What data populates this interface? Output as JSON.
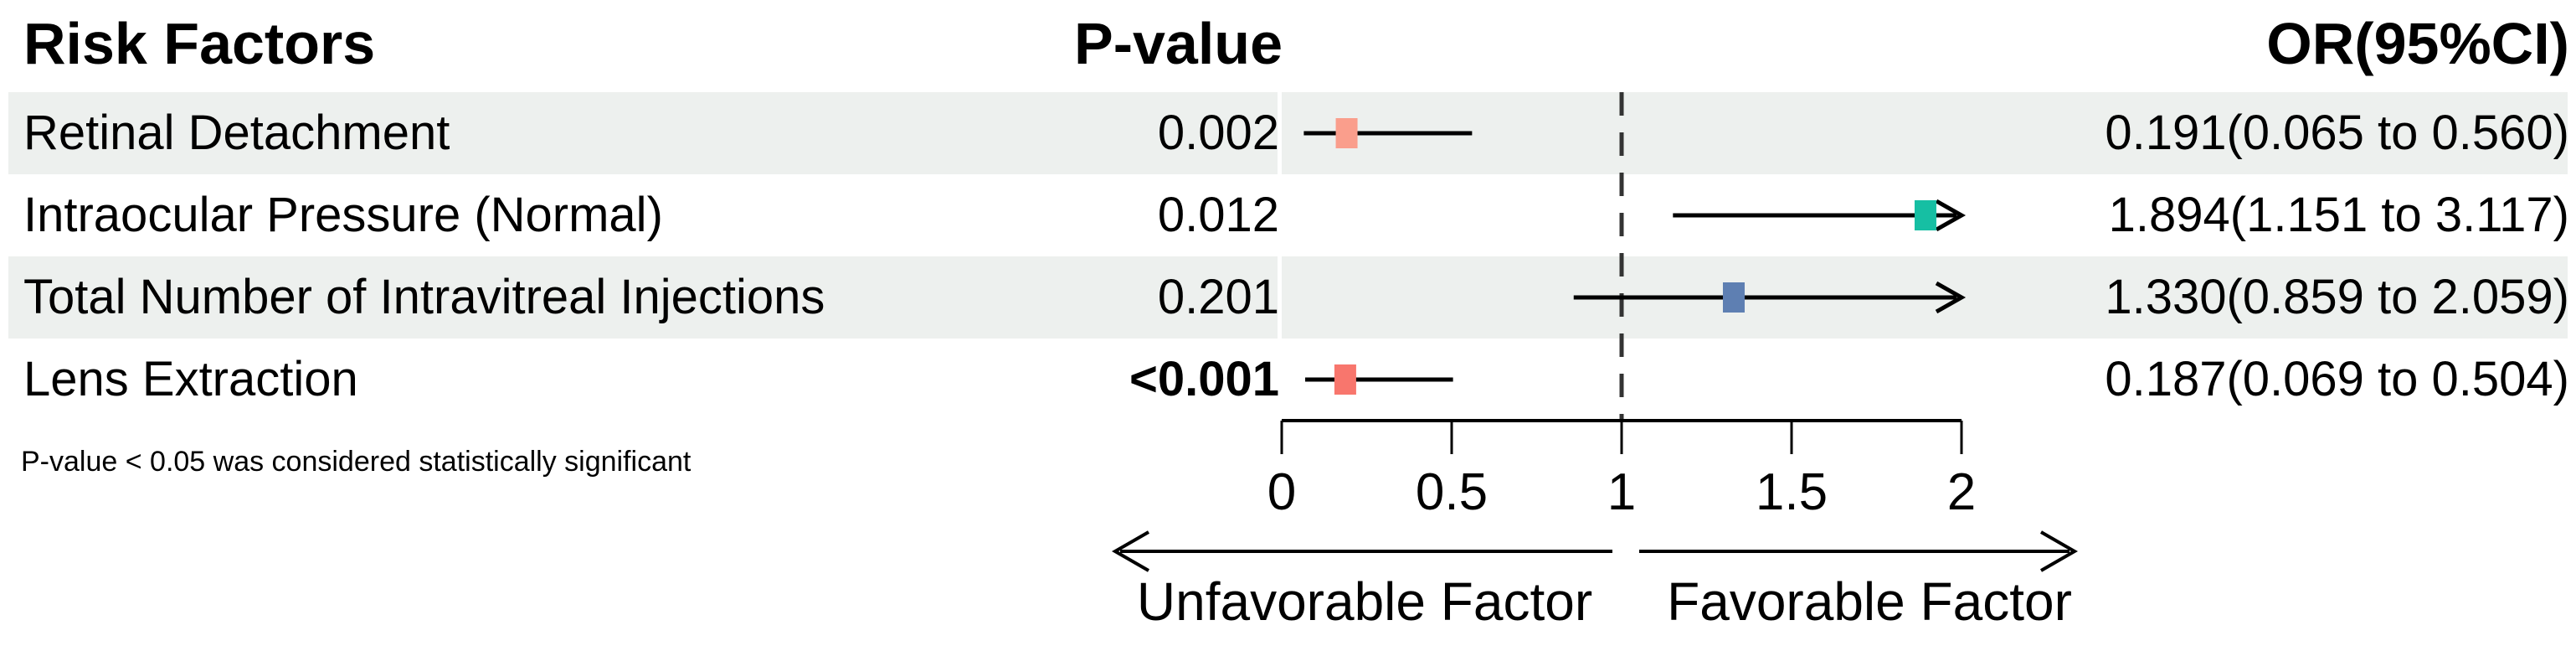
{
  "header": {
    "risk_factors": "Risk Factors",
    "p_value": "P-value",
    "or_ci": "OR(95%CI)"
  },
  "footnote": "P-value < 0.05 was considered statistically significant",
  "direction_labels": {
    "left": "Unfavorable Factor",
    "right": "Favorable Factor"
  },
  "colors": {
    "row_band": "#edf0ee",
    "axis_line": "#000000",
    "ci_line": "#000000",
    "reference_line": "#333333"
  },
  "chart_data": {
    "type": "forest",
    "title": "",
    "xlabel": "",
    "axis": {
      "min": 0,
      "max": 2,
      "ticks": [
        0,
        0.5,
        1,
        1.5,
        2
      ],
      "tick_labels": [
        "0",
        "0.5",
        "1",
        "1.5",
        "2"
      ],
      "reference_value": 1
    },
    "rows": [
      {
        "label": "Retinal Detachment",
        "p_value": "0.002",
        "p_bold": false,
        "or": 0.191,
        "ci_low": 0.065,
        "ci_high": 0.56,
        "or_ci_text": "0.191(0.065 to 0.560)",
        "marker_color": "#FA9E8C",
        "shaded": true
      },
      {
        "label": "Intraocular Pressure (Normal)",
        "p_value": "0.012",
        "p_bold": false,
        "or": 1.894,
        "ci_low": 1.151,
        "ci_high": 3.117,
        "or_ci_text": "1.894(1.151 to 3.117)",
        "marker_color": "#16BFA3",
        "shaded": false
      },
      {
        "label": "Total Number of Intravitreal Injections",
        "p_value": "0.201",
        "p_bold": false,
        "or": 1.33,
        "ci_low": 0.859,
        "ci_high": 2.059,
        "or_ci_text": "1.330(0.859 to 2.059)",
        "marker_color": "#5E7FB2",
        "shaded": true
      },
      {
        "label": "Lens Extraction",
        "p_value": "<0.001",
        "p_bold": true,
        "or": 0.187,
        "ci_low": 0.069,
        "ci_high": 0.504,
        "or_ci_text": "0.187(0.069 to 0.504)",
        "marker_color": "#F8766D",
        "shaded": false
      }
    ]
  }
}
